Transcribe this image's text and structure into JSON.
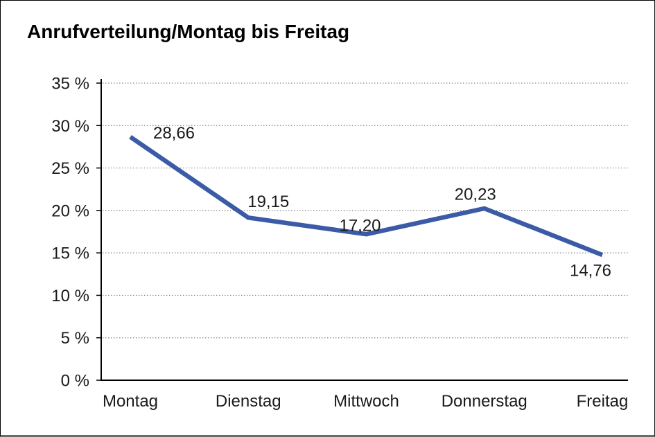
{
  "page": {
    "background": "#FFFFFF",
    "frame_border_color": "#000000",
    "frame_bottom_color": "#6B6B6B"
  },
  "chart_data": {
    "type": "line",
    "title": "Anrufverteilung/Montag bis Freitag",
    "categories": [
      "Montag",
      "Dienstag",
      "Mittwoch",
      "Donnerstag",
      "Freitag"
    ],
    "values": [
      28.66,
      19.15,
      17.2,
      20.23,
      14.76
    ],
    "value_labels": [
      "28,66",
      "19,15",
      "17,20",
      "20,23",
      "14,76"
    ],
    "xlabel": "",
    "ylabel": "",
    "y_ticks": [
      "0 %",
      "5 %",
      "10 %",
      "15 %",
      "20 %",
      "25 %",
      "30 %",
      "35 %"
    ],
    "ylim": [
      0,
      35
    ],
    "y_tick_step": 5,
    "unit": "%",
    "grid": "horizontal-dotted",
    "legend": "none",
    "line_color": "#3B5BA6",
    "text_color": "#1A1A1A",
    "axis_color": "#000000",
    "grid_color": "#808080"
  }
}
